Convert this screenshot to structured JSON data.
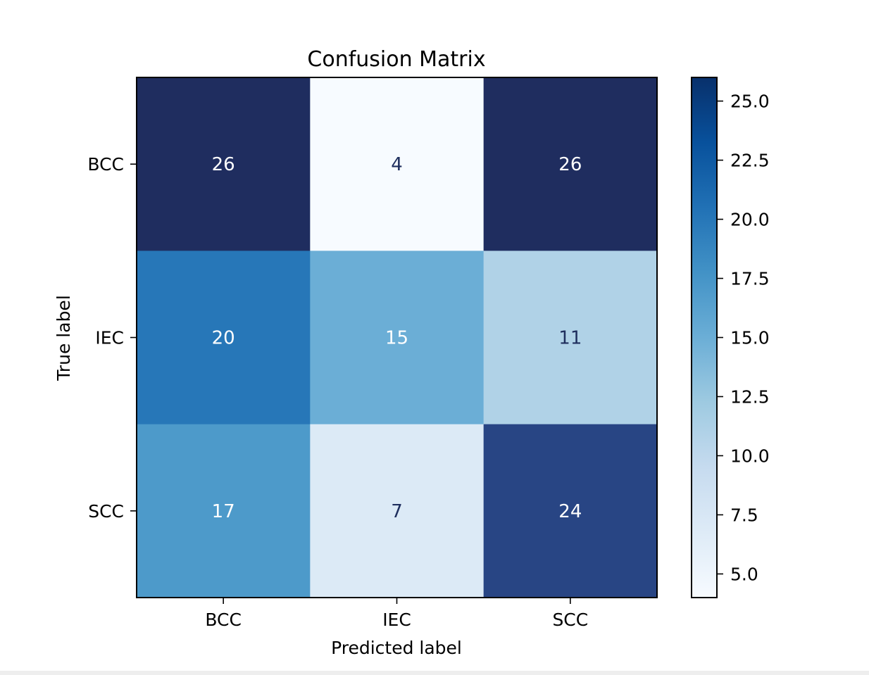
{
  "chart_data": {
    "type": "heatmap",
    "title": "Confusion Matrix",
    "xlabel": "Predicted label",
    "ylabel": "True label",
    "x_categories": [
      "BCC",
      "IEC",
      "SCC"
    ],
    "y_categories": [
      "BCC",
      "IEC",
      "SCC"
    ],
    "values": [
      [
        26,
        4,
        26
      ],
      [
        20,
        15,
        11
      ],
      [
        17,
        7,
        24
      ]
    ],
    "colormap": "Blues",
    "colorbar": {
      "range": [
        4,
        26
      ],
      "ticks": [
        5.0,
        7.5,
        10.0,
        12.5,
        15.0,
        17.5,
        20.0,
        22.5,
        25.0
      ],
      "tick_labels": [
        "5.0",
        "7.5",
        "10.0",
        "12.5",
        "15.0",
        "17.5",
        "20.0",
        "22.5",
        "25.0"
      ]
    },
    "text_colors": {
      "dark": "#1f2f5e",
      "light": "#ffffff"
    }
  }
}
